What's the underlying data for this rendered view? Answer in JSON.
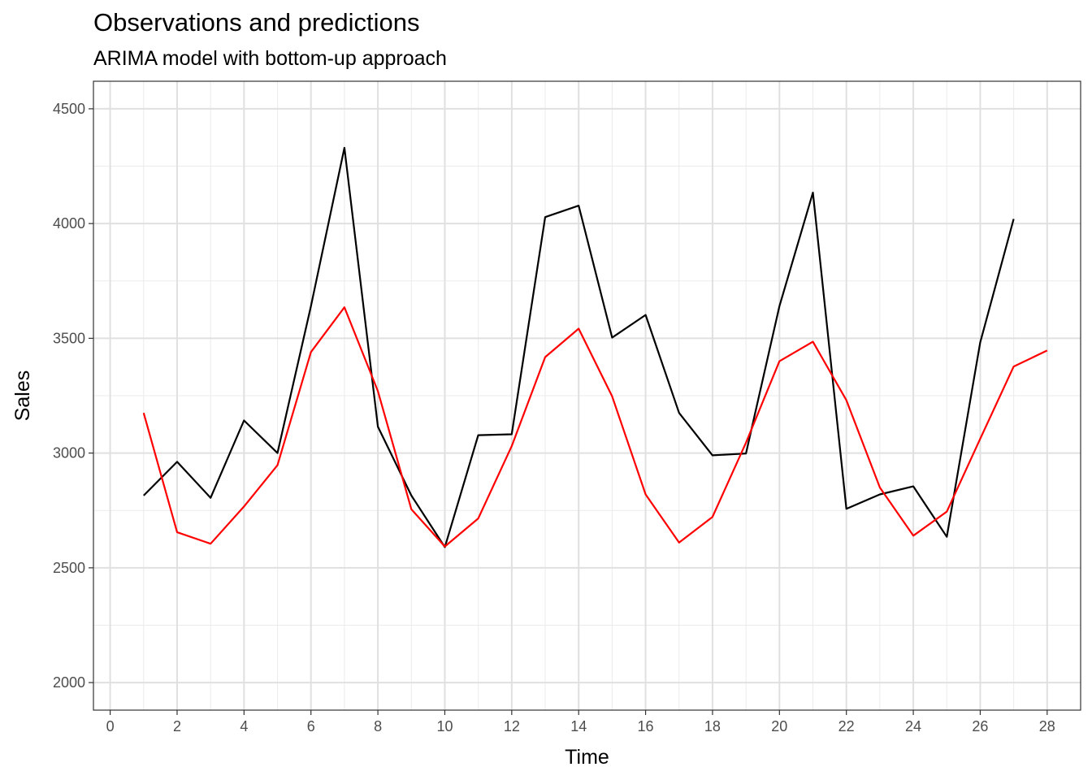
{
  "chart_data": {
    "type": "line",
    "title": "Observations and predictions",
    "subtitle": "ARIMA model with bottom-up approach",
    "xlabel": "Time",
    "ylabel": "Sales",
    "xlim": [
      -0.5,
      29
    ],
    "ylim": [
      1880,
      4620
    ],
    "x_ticks": [
      0,
      2,
      4,
      6,
      8,
      10,
      12,
      14,
      16,
      18,
      20,
      22,
      24,
      26,
      28
    ],
    "y_ticks": [
      2000,
      2500,
      3000,
      3500,
      4000,
      4500
    ],
    "grid": true,
    "legend": "none",
    "series": [
      {
        "color": "#000000",
        "x": [
          1,
          2,
          3,
          4,
          5,
          6,
          7,
          8,
          9,
          10,
          11,
          12,
          13,
          14,
          15,
          16,
          17,
          18,
          19,
          20,
          21,
          22,
          23,
          24,
          25,
          26,
          27
        ],
        "values": [
          2815,
          2962,
          2805,
          3142,
          3000,
          3640,
          4330,
          3115,
          2815,
          2590,
          3078,
          3082,
          4028,
          4078,
          3503,
          3602,
          3175,
          2990,
          2998,
          3640,
          4135,
          2757,
          2820,
          2855,
          2635,
          3482,
          4020
        ]
      },
      {
        "color": "#ff0000",
        "x": [
          1,
          2,
          3,
          4,
          5,
          6,
          7,
          8,
          9,
          10,
          11,
          12,
          13,
          14,
          15,
          16,
          17,
          18,
          19,
          20,
          21,
          22,
          23,
          24,
          25,
          26,
          27,
          28
        ],
        "values": [
          3175,
          2655,
          2605,
          2767,
          2947,
          3440,
          3635,
          3270,
          2755,
          2593,
          2715,
          3030,
          3418,
          3542,
          3247,
          2820,
          2610,
          2722,
          3045,
          3400,
          3485,
          3230,
          2850,
          2640,
          2745,
          3062,
          3377,
          3447
        ]
      }
    ]
  }
}
